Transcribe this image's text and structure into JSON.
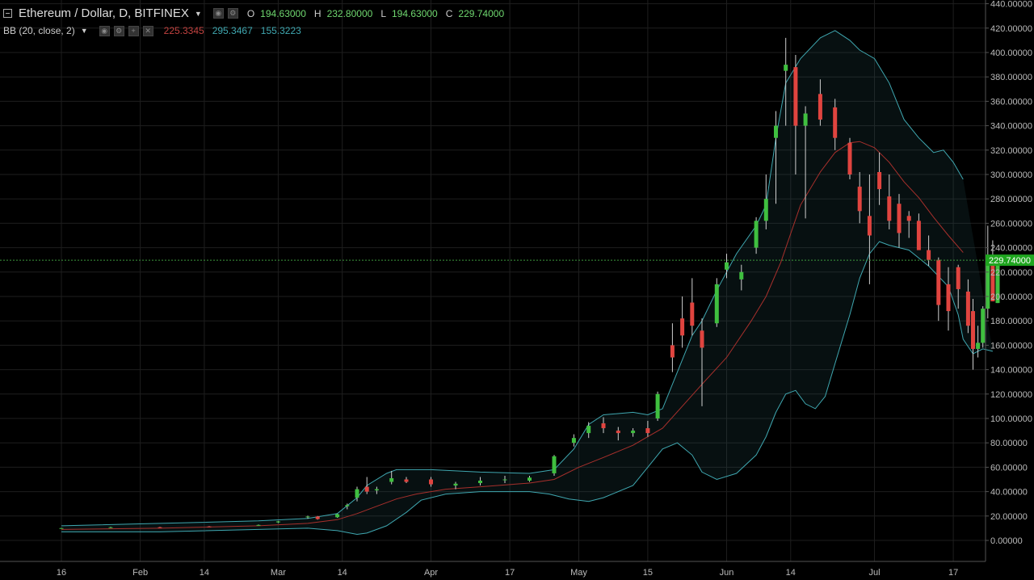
{
  "header": {
    "symbol_title": "Ethereum / Dollar, D, BITFINEX",
    "ohlc": {
      "o_label": "O",
      "o": "194.63000",
      "h_label": "H",
      "h": "232.80000",
      "l_label": "L",
      "l": "194.63000",
      "c_label": "C",
      "c": "229.74000"
    }
  },
  "indicator": {
    "label": "BB (20, close, 2)",
    "basis": "225.3345",
    "upper": "295.3467",
    "lower": "155.3223"
  },
  "colors": {
    "background": "#000000",
    "grid": "#1e1e1e",
    "up": "#3fbf3f",
    "down": "#e0443f",
    "band": "#3fa7b0",
    "basis": "#a8302c",
    "last_price": "#3c9a3c"
  },
  "chart_data": {
    "type": "candlestick",
    "y_ticks": [
      "440.00000",
      "420.00000",
      "400.00000",
      "380.00000",
      "360.00000",
      "340.00000",
      "320.00000",
      "300.00000",
      "280.00000",
      "260.00000",
      "240.00000",
      "220.00000",
      "200.00000",
      "180.00000",
      "160.00000",
      "140.00000",
      "120.00000",
      "100.00000",
      "80.00000",
      "60.00000",
      "40.00000",
      "20.00000",
      "0.00000"
    ],
    "ylim": [
      -14,
      442
    ],
    "x_ticks": [
      "16",
      "Feb",
      "14",
      "Mar",
      "14",
      "Apr",
      "17",
      "May",
      "15",
      "Jun",
      "14",
      "Jul",
      "17"
    ],
    "x_tick_days": [
      0,
      16,
      29,
      44,
      57,
      75,
      91,
      105,
      119,
      135,
      148,
      165,
      181
    ],
    "x_start": "2017-01-16",
    "last_price": 229.74,
    "last_price_label": "229.74000",
    "candles_sampled": [
      [
        0,
        10.0,
        10.3,
        9.6,
        10.1
      ],
      [
        10,
        10.5,
        11.2,
        10.2,
        10.8
      ],
      [
        20,
        10.8,
        11.1,
        10.5,
        10.7
      ],
      [
        30,
        11.4,
        11.7,
        11.0,
        11.3
      ],
      [
        40,
        12.6,
        13.0,
        12.2,
        12.7
      ],
      [
        44,
        14.8,
        16.0,
        14.2,
        15.6
      ],
      [
        50,
        19.0,
        20.3,
        17.8,
        19.6
      ],
      [
        52,
        19.6,
        20.0,
        17.0,
        17.5
      ],
      [
        56,
        19.0,
        22.0,
        18.5,
        21.5
      ],
      [
        58,
        28.0,
        30.2,
        25.5,
        29.0
      ],
      [
        60,
        35.0,
        44.0,
        32.0,
        42.0
      ],
      [
        62,
        44.0,
        52.0,
        38.0,
        40.0
      ],
      [
        64,
        41.0,
        44.0,
        38.0,
        42.0
      ],
      [
        67,
        48.0,
        57.0,
        46.0,
        51.0
      ],
      [
        70,
        50.0,
        52.0,
        47.0,
        48.0
      ],
      [
        75,
        50.0,
        52.0,
        44.0,
        46.0
      ],
      [
        80,
        45.0,
        48.0,
        42.0,
        46.5
      ],
      [
        85,
        47.0,
        52.0,
        45.0,
        49.0
      ],
      [
        90,
        50.0,
        53.0,
        47.0,
        50.0
      ],
      [
        95,
        49.0,
        53.0,
        48.0,
        51.5
      ],
      [
        100,
        55.0,
        70.0,
        53.0,
        69.0
      ],
      [
        104,
        80.0,
        87.0,
        77.0,
        84.0
      ],
      [
        107,
        88.0,
        97.0,
        84.0,
        94.0
      ],
      [
        110,
        96.0,
        101.0,
        88.0,
        92.0
      ],
      [
        113,
        90.0,
        93.0,
        82.0,
        88.0
      ],
      [
        116,
        88.0,
        92.0,
        85.0,
        90.0
      ],
      [
        119,
        92.0,
        98.0,
        85.0,
        88.0
      ],
      [
        121,
        100.0,
        122.0,
        98.0,
        120.0
      ],
      [
        124,
        160.0,
        178.0,
        138.0,
        150.0
      ],
      [
        126,
        182.0,
        200.0,
        158.0,
        168.0
      ],
      [
        128,
        195.0,
        215.0,
        168.0,
        176.0
      ],
      [
        130,
        172.0,
        182.0,
        110.0,
        158.0
      ],
      [
        133,
        178.0,
        215.0,
        175.0,
        210.0
      ],
      [
        135,
        222.0,
        235.0,
        215.0,
        228.0
      ],
      [
        138,
        214.0,
        226.0,
        205.0,
        220.0
      ],
      [
        141,
        240.0,
        265.0,
        235.0,
        262.0
      ],
      [
        143,
        262.0,
        300.0,
        255.0,
        280.0
      ],
      [
        145,
        330.0,
        352.0,
        276.0,
        340.0
      ],
      [
        147,
        385.0,
        412.0,
        340.0,
        390.0
      ],
      [
        149,
        388.0,
        398.0,
        300.0,
        340.0
      ],
      [
        151,
        340.0,
        356.0,
        264.0,
        350.0
      ],
      [
        154,
        366.0,
        378.0,
        340.0,
        345.0
      ],
      [
        157,
        355.0,
        362.0,
        320.0,
        330.0
      ],
      [
        160,
        326.0,
        330.0,
        296.0,
        300.0
      ],
      [
        162,
        290.0,
        302.0,
        260.0,
        270.0
      ],
      [
        164,
        266.0,
        300.0,
        210.0,
        250.0
      ],
      [
        166,
        302.0,
        318.0,
        275.0,
        288.0
      ],
      [
        168,
        282.0,
        300.0,
        255.0,
        262.0
      ],
      [
        170,
        276.0,
        284.0,
        240.0,
        252.0
      ],
      [
        172,
        266.0,
        270.0,
        248.0,
        262.0
      ],
      [
        174,
        262.0,
        268.0,
        240.0,
        238.0
      ],
      [
        176,
        238.0,
        250.0,
        225.0,
        230.0
      ],
      [
        178,
        230.0,
        232.0,
        180.0,
        193.0
      ],
      [
        180,
        210.0,
        224.0,
        172.0,
        188.0
      ],
      [
        182,
        224.0,
        226.0,
        190.0,
        206.0
      ],
      [
        184,
        204.0,
        214.0,
        170.0,
        176.0
      ],
      [
        185,
        188.0,
        198.0,
        140.0,
        157.0
      ],
      [
        186,
        157.0,
        176.0,
        150.0,
        162.0
      ],
      [
        187,
        162.0,
        192.0,
        158.0,
        190.0
      ],
      [
        188,
        190.0,
        258.0,
        182.0,
        226.0
      ],
      [
        189,
        226.0,
        246.0,
        196.0,
        196.0
      ],
      [
        190,
        194.63,
        232.8,
        194.63,
        229.74
      ]
    ],
    "bb_upper": [
      [
        0,
        12
      ],
      [
        20,
        14
      ],
      [
        40,
        16
      ],
      [
        50,
        18
      ],
      [
        56,
        22
      ],
      [
        60,
        35
      ],
      [
        62,
        45
      ],
      [
        66,
        55
      ],
      [
        68,
        58
      ],
      [
        75,
        58
      ],
      [
        85,
        56
      ],
      [
        95,
        55
      ],
      [
        100,
        58
      ],
      [
        104,
        75
      ],
      [
        107,
        95
      ],
      [
        110,
        103
      ],
      [
        116,
        105
      ],
      [
        119,
        103
      ],
      [
        122,
        108
      ],
      [
        125,
        138
      ],
      [
        128,
        168
      ],
      [
        130,
        180
      ],
      [
        133,
        205
      ],
      [
        137,
        235
      ],
      [
        141,
        258
      ],
      [
        143,
        275
      ],
      [
        145,
        330
      ],
      [
        147,
        375
      ],
      [
        150,
        395
      ],
      [
        154,
        412
      ],
      [
        157,
        418
      ],
      [
        160,
        410
      ],
      [
        162,
        402
      ],
      [
        165,
        395
      ],
      [
        168,
        375
      ],
      [
        171,
        345
      ],
      [
        174,
        330
      ],
      [
        177,
        318
      ],
      [
        179,
        320
      ],
      [
        181,
        310
      ],
      [
        183,
        296
      ]
    ],
    "bb_basis": [
      [
        0,
        9
      ],
      [
        20,
        10
      ],
      [
        40,
        12
      ],
      [
        50,
        14
      ],
      [
        56,
        17
      ],
      [
        60,
        22
      ],
      [
        64,
        28
      ],
      [
        68,
        34
      ],
      [
        72,
        38
      ],
      [
        78,
        42
      ],
      [
        85,
        44
      ],
      [
        95,
        47
      ],
      [
        100,
        50
      ],
      [
        105,
        60
      ],
      [
        110,
        68
      ],
      [
        116,
        78
      ],
      [
        119,
        85
      ],
      [
        122,
        92
      ],
      [
        126,
        110
      ],
      [
        130,
        128
      ],
      [
        135,
        150
      ],
      [
        140,
        180
      ],
      [
        143,
        200
      ],
      [
        146,
        228
      ],
      [
        150,
        275
      ],
      [
        154,
        302
      ],
      [
        157,
        318
      ],
      [
        160,
        326
      ],
      [
        162,
        327
      ],
      [
        165,
        322
      ],
      [
        168,
        310
      ],
      [
        171,
        294
      ],
      [
        174,
        281
      ],
      [
        177,
        265
      ],
      [
        180,
        250
      ],
      [
        183,
        236
      ]
    ],
    "bb_lower": [
      [
        0,
        7
      ],
      [
        20,
        7
      ],
      [
        40,
        9
      ],
      [
        50,
        10
      ],
      [
        56,
        8
      ],
      [
        60,
        5
      ],
      [
        62,
        6
      ],
      [
        66,
        12
      ],
      [
        70,
        23
      ],
      [
        73,
        33
      ],
      [
        78,
        38
      ],
      [
        85,
        40
      ],
      [
        95,
        40
      ],
      [
        99,
        38
      ],
      [
        103,
        34
      ],
      [
        107,
        32
      ],
      [
        110,
        35
      ],
      [
        116,
        45
      ],
      [
        119,
        60
      ],
      [
        122,
        75
      ],
      [
        125,
        80
      ],
      [
        128,
        70
      ],
      [
        130,
        56
      ],
      [
        133,
        50
      ],
      [
        137,
        55
      ],
      [
        141,
        70
      ],
      [
        143,
        85
      ],
      [
        145,
        105
      ],
      [
        147,
        120
      ],
      [
        149,
        123
      ],
      [
        151,
        112
      ],
      [
        153,
        108
      ],
      [
        155,
        118
      ],
      [
        157,
        145
      ],
      [
        160,
        185
      ],
      [
        162,
        215
      ],
      [
        164,
        235
      ],
      [
        166,
        245
      ],
      [
        168,
        242
      ],
      [
        172,
        238
      ],
      [
        176,
        225
      ],
      [
        180,
        208
      ],
      [
        182,
        185
      ],
      [
        183,
        165
      ],
      [
        185,
        153
      ],
      [
        187,
        157
      ],
      [
        189,
        155
      ]
    ]
  }
}
